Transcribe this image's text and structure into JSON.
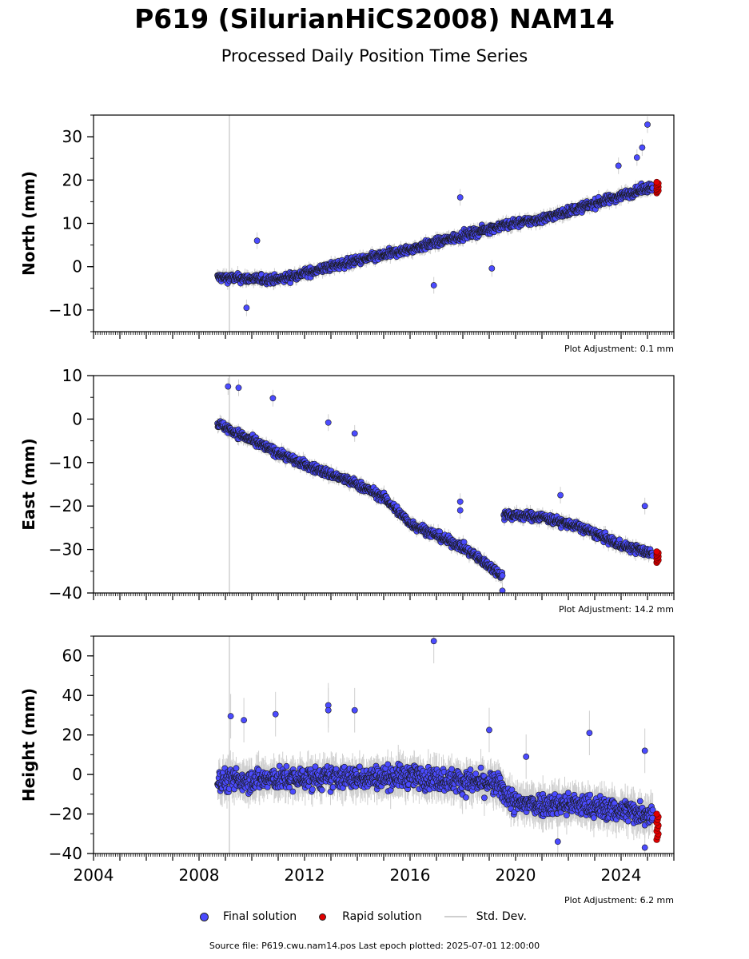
{
  "title": "P619 (SilurianHiCS2008) NAM14",
  "subtitle": "Processed Daily Position Time Series",
  "legend": {
    "final": "Final solution",
    "rapid": "Rapid solution",
    "std": "Std. Dev."
  },
  "footer": "Source file: P619.cwu.nam14.pos  Last epoch plotted: 2025-07-01 12:00:00",
  "colors": {
    "final": "#4b4bff",
    "rapid": "#e00000",
    "std": "#cfcfcf",
    "marker_vline": "#d0d0d0"
  },
  "chart_data": [
    {
      "type": "scatter",
      "ylabel": "North (mm)",
      "xlim": [
        2004.0,
        2026.0
      ],
      "ylim": [
        -15,
        35
      ],
      "yticks": [
        -10,
        0,
        10,
        20,
        30
      ],
      "xticks": [
        2004,
        2008,
        2012,
        2016,
        2020,
        2024
      ],
      "show_xtick_labels": false,
      "plot_adjustment": "Plot Adjustment: 0.1 mm",
      "vline_x": 2009.15,
      "final_trend": [
        [
          2008.7,
          -2.5
        ],
        [
          2011.0,
          -3.0
        ],
        [
          2013.0,
          0.0
        ],
        [
          2016.0,
          4.0
        ],
        [
          2019.5,
          9.5
        ],
        [
          2021.0,
          11.0
        ],
        [
          2025.2,
          18.5
        ]
      ],
      "final_outliers": [
        [
          2009.8,
          -9.5
        ],
        [
          2010.2,
          6.0
        ],
        [
          2016.9,
          -4.3
        ],
        [
          2019.1,
          -0.4
        ],
        [
          2025.0,
          32.8
        ],
        [
          2024.8,
          27.5
        ],
        [
          2024.6,
          25.2
        ],
        [
          2023.9,
          23.3
        ],
        [
          2017.9,
          16.0
        ]
      ],
      "rapid_trend": [
        [
          2025.3,
          17.0
        ],
        [
          2025.6,
          19.5
        ]
      ]
    },
    {
      "type": "scatter",
      "ylabel": "East (mm)",
      "xlim": [
        2004.0,
        2026.0
      ],
      "ylim": [
        -40,
        10
      ],
      "yticks": [
        -40,
        -30,
        -20,
        -10,
        0,
        10
      ],
      "xticks": [
        2004,
        2008,
        2012,
        2016,
        2020,
        2024
      ],
      "show_xtick_labels": false,
      "plot_adjustment": "Plot Adjustment: 14.2 mm",
      "vline_x": 2009.15,
      "final_trend": [
        [
          2008.7,
          -1.0
        ],
        [
          2010.0,
          -5.0
        ],
        [
          2012.0,
          -10.5
        ],
        [
          2014.0,
          -15.0
        ],
        [
          2015.0,
          -18.0
        ],
        [
          2016.0,
          -24.0
        ],
        [
          2018.0,
          -29.5
        ],
        [
          2019.5,
          -36.0
        ]
      ],
      "final_trend_2": [
        [
          2019.55,
          -22.0
        ],
        [
          2021.0,
          -22.5
        ],
        [
          2022.5,
          -25.0
        ],
        [
          2024.0,
          -29.0
        ],
        [
          2025.2,
          -31.0
        ]
      ],
      "final_outliers": [
        [
          2009.1,
          7.5
        ],
        [
          2009.5,
          7.2
        ],
        [
          2010.8,
          4.8
        ],
        [
          2012.9,
          -0.8
        ],
        [
          2013.9,
          -3.3
        ],
        [
          2017.9,
          -19.0
        ],
        [
          2017.9,
          -21.0
        ],
        [
          2021.7,
          -17.5
        ],
        [
          2024.9,
          -20.0
        ],
        [
          2019.5,
          -39.5
        ]
      ],
      "rapid_trend": [
        [
          2025.3,
          -33.0
        ],
        [
          2025.6,
          -30.5
        ]
      ]
    },
    {
      "type": "scatter",
      "ylabel": "Height (mm)",
      "xlim": [
        2004.0,
        2026.0
      ],
      "ylim": [
        -40,
        70
      ],
      "yticks": [
        -40,
        -20,
        0,
        20,
        40,
        60
      ],
      "xticks": [
        2004,
        2008,
        2012,
        2016,
        2020,
        2024
      ],
      "xticklabels": [
        "2004",
        "2008",
        "2012",
        "2016",
        "2020",
        "2024"
      ],
      "show_xtick_labels": true,
      "plot_adjustment": "Plot Adjustment: 6.2 mm",
      "vline_x": 2009.15,
      "final_trend": [
        [
          2008.7,
          -3.0
        ],
        [
          2012.0,
          -2.0
        ],
        [
          2016.0,
          -1.0
        ],
        [
          2019.3,
          -5.0
        ],
        [
          2020.0,
          -15.0
        ],
        [
          2022.0,
          -15.0
        ],
        [
          2025.2,
          -20.0
        ]
      ],
      "final_outliers": [
        [
          2016.9,
          67.5
        ],
        [
          2012.9,
          35.0
        ],
        [
          2012.9,
          32.5
        ],
        [
          2013.9,
          32.5
        ],
        [
          2009.2,
          29.5
        ],
        [
          2009.7,
          27.5
        ],
        [
          2010.9,
          30.5
        ],
        [
          2019.0,
          22.5
        ],
        [
          2022.8,
          21.0
        ],
        [
          2020.4,
          9.0
        ],
        [
          2024.9,
          12.0
        ],
        [
          2021.6,
          -34.0
        ],
        [
          2024.9,
          -37.0
        ]
      ],
      "rapid_trend": [
        [
          2025.3,
          -33.0
        ],
        [
          2025.6,
          -20.0
        ]
      ]
    }
  ]
}
